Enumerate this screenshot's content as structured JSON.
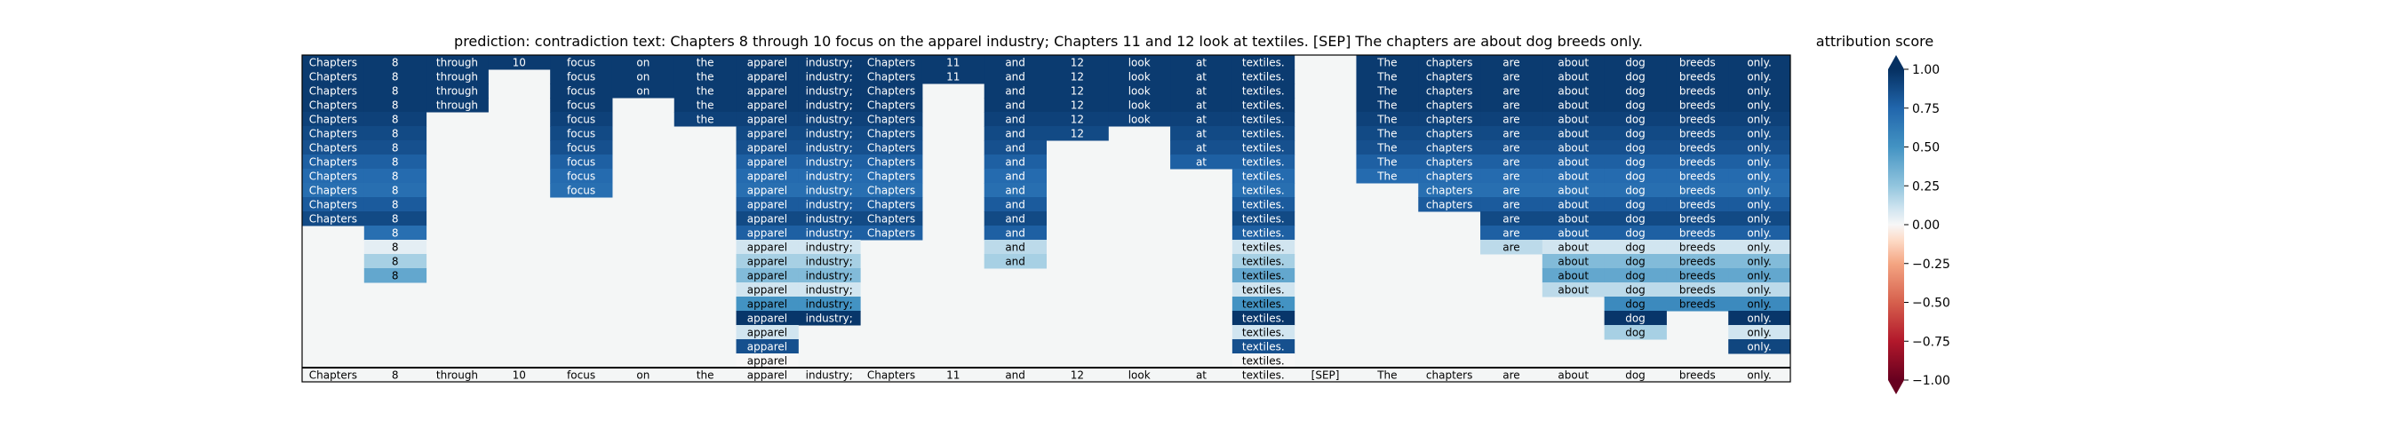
{
  "chart_data": {
    "type": "heatmap",
    "title": "prediction:  contradiction     text:  Chapters 8 through 10 focus on the apparel industry; Chapters 11 and 12 look at textiles. [SEP] The chapters are about dog breeds only.",
    "tokens": [
      "Chapters",
      "8",
      "through",
      "10",
      "focus",
      "on",
      "the",
      "apparel",
      "industry;",
      "Chapters",
      "11",
      "and",
      "12",
      "look",
      "at",
      "textiles.",
      "[SEP]",
      "The",
      "chapters",
      "are",
      "about",
      "dog",
      "breeds",
      "only."
    ],
    "colorbar": {
      "label": "attribution score",
      "min": -1.0,
      "max": 1.0,
      "ticks": [
        1.0,
        0.75,
        0.5,
        0.25,
        0.0,
        -0.25,
        -0.5,
        -0.75,
        -1.0
      ],
      "tick_labels": [
        "1.00",
        "0.75",
        "0.50",
        "0.25",
        "0.00",
        "−0.25",
        "−0.50",
        "−0.75",
        "−1.00"
      ],
      "colormap": "RdBu",
      "extend": "both"
    },
    "rows": [
      [
        0.95,
        0.95,
        0.95,
        0.95,
        0.95,
        0.95,
        0.95,
        0.95,
        0.95,
        0.95,
        0.95,
        0.95,
        0.95,
        0.95,
        0.95,
        0.95,
        null,
        0.95,
        0.95,
        0.95,
        0.95,
        0.95,
        0.95,
        0.95
      ],
      [
        0.95,
        0.95,
        0.95,
        null,
        0.95,
        0.95,
        0.95,
        0.95,
        0.95,
        0.95,
        0.95,
        0.95,
        0.95,
        0.95,
        0.95,
        0.95,
        null,
        0.95,
        0.95,
        0.95,
        0.95,
        0.95,
        0.95,
        0.95
      ],
      [
        0.95,
        0.95,
        0.95,
        null,
        0.95,
        0.95,
        0.95,
        0.95,
        0.95,
        0.95,
        null,
        0.95,
        0.95,
        0.95,
        0.95,
        0.95,
        null,
        0.95,
        0.95,
        0.95,
        0.95,
        0.95,
        0.95,
        0.95
      ],
      [
        0.95,
        0.95,
        0.95,
        null,
        0.95,
        null,
        0.95,
        0.95,
        0.95,
        0.95,
        null,
        0.95,
        0.95,
        0.95,
        0.95,
        0.95,
        null,
        0.95,
        0.95,
        0.95,
        0.95,
        0.95,
        0.95,
        0.95
      ],
      [
        0.92,
        0.92,
        null,
        null,
        0.92,
        null,
        0.92,
        0.92,
        0.92,
        0.92,
        null,
        0.92,
        0.92,
        0.92,
        0.92,
        0.92,
        null,
        0.92,
        0.92,
        0.92,
        0.92,
        0.92,
        0.92,
        0.92
      ],
      [
        0.88,
        0.88,
        null,
        null,
        0.88,
        null,
        null,
        0.88,
        0.88,
        0.88,
        null,
        0.88,
        0.88,
        null,
        0.88,
        0.88,
        null,
        0.88,
        0.88,
        0.88,
        0.88,
        0.88,
        0.88,
        0.88
      ],
      [
        0.85,
        0.85,
        null,
        null,
        0.85,
        null,
        null,
        0.85,
        0.85,
        0.85,
        null,
        0.85,
        null,
        null,
        0.85,
        0.85,
        null,
        0.85,
        0.85,
        0.85,
        0.85,
        0.85,
        0.85,
        0.85
      ],
      [
        0.78,
        0.78,
        null,
        null,
        0.78,
        null,
        null,
        0.78,
        0.78,
        0.78,
        null,
        0.78,
        null,
        null,
        0.78,
        0.78,
        null,
        0.78,
        0.78,
        0.78,
        0.78,
        0.78,
        0.78,
        0.78
      ],
      [
        0.72,
        0.72,
        null,
        null,
        0.72,
        null,
        null,
        0.72,
        0.72,
        0.72,
        null,
        0.72,
        null,
        null,
        null,
        0.72,
        null,
        0.72,
        0.72,
        0.72,
        0.72,
        0.72,
        0.72,
        0.72
      ],
      [
        0.7,
        0.7,
        null,
        null,
        0.7,
        null,
        null,
        0.7,
        0.7,
        0.7,
        null,
        0.7,
        null,
        null,
        null,
        0.7,
        null,
        null,
        0.7,
        0.7,
        0.7,
        0.7,
        0.7,
        0.7
      ],
      [
        0.8,
        0.8,
        null,
        null,
        null,
        null,
        null,
        0.8,
        0.8,
        0.8,
        null,
        0.8,
        null,
        null,
        null,
        0.8,
        null,
        null,
        0.8,
        0.8,
        0.8,
        0.8,
        0.8,
        0.8
      ],
      [
        0.88,
        0.88,
        null,
        null,
        null,
        null,
        null,
        0.88,
        0.88,
        0.88,
        null,
        0.88,
        null,
        null,
        null,
        0.88,
        null,
        null,
        null,
        0.88,
        0.88,
        0.88,
        0.88,
        0.88
      ],
      [
        null,
        0.7,
        null,
        null,
        null,
        null,
        null,
        0.78,
        0.78,
        0.78,
        null,
        0.78,
        null,
        null,
        null,
        0.78,
        null,
        null,
        null,
        0.78,
        0.78,
        0.78,
        0.78,
        0.78
      ],
      [
        null,
        0.05,
        null,
        null,
        null,
        null,
        null,
        0.1,
        0.1,
        null,
        null,
        0.15,
        null,
        null,
        null,
        0.1,
        null,
        null,
        null,
        0.15,
        0.1,
        0.1,
        0.1,
        0.1
      ],
      [
        null,
        0.2,
        null,
        null,
        null,
        null,
        null,
        0.2,
        0.2,
        null,
        null,
        0.2,
        null,
        null,
        null,
        0.2,
        null,
        null,
        null,
        null,
        0.3,
        0.3,
        0.3,
        0.3
      ],
      [
        null,
        0.4,
        null,
        null,
        null,
        null,
        null,
        0.3,
        0.3,
        null,
        null,
        null,
        null,
        null,
        null,
        0.4,
        null,
        null,
        null,
        null,
        0.4,
        0.4,
        0.4,
        0.4
      ],
      [
        null,
        null,
        null,
        null,
        null,
        null,
        null,
        0.1,
        0.1,
        null,
        null,
        null,
        null,
        null,
        null,
        0.1,
        null,
        null,
        null,
        null,
        0.15,
        0.15,
        0.15,
        0.15
      ],
      [
        null,
        null,
        null,
        null,
        null,
        null,
        null,
        0.5,
        0.5,
        null,
        null,
        null,
        null,
        null,
        null,
        0.5,
        null,
        null,
        null,
        null,
        null,
        0.55,
        0.55,
        0.55
      ],
      [
        null,
        null,
        null,
        null,
        null,
        null,
        null,
        0.97,
        0.97,
        null,
        null,
        null,
        null,
        null,
        null,
        0.97,
        null,
        null,
        null,
        null,
        null,
        0.97,
        null,
        0.97
      ],
      [
        null,
        null,
        null,
        null,
        null,
        null,
        null,
        0.1,
        null,
        null,
        null,
        null,
        null,
        null,
        null,
        0.1,
        null,
        null,
        null,
        null,
        null,
        0.2,
        null,
        0.1
      ],
      [
        null,
        null,
        null,
        null,
        null,
        null,
        null,
        0.85,
        null,
        null,
        null,
        null,
        null,
        null,
        null,
        0.85,
        null,
        null,
        null,
        null,
        null,
        null,
        null,
        0.9
      ],
      [
        null,
        null,
        null,
        null,
        null,
        null,
        null,
        0.0,
        null,
        null,
        null,
        null,
        null,
        null,
        null,
        0.0,
        null,
        null,
        null,
        null,
        null,
        null,
        null,
        null
      ]
    ]
  }
}
